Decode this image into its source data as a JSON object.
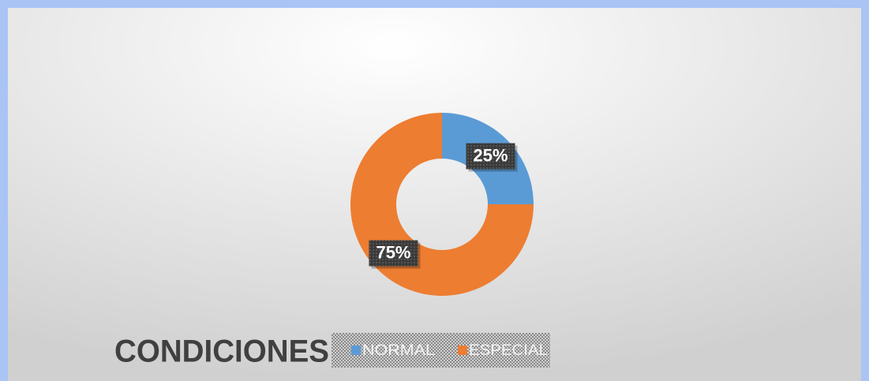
{
  "chart_data": {
    "type": "doughnut",
    "title": "CONDICIONES",
    "categories": [
      "NORMAL",
      "ESPECIAL"
    ],
    "values": [
      25,
      75
    ],
    "value_labels": [
      "25%",
      "75%"
    ],
    "colors": [
      "#5b9bd5",
      "#ed7d31"
    ],
    "legend": "bottom"
  }
}
